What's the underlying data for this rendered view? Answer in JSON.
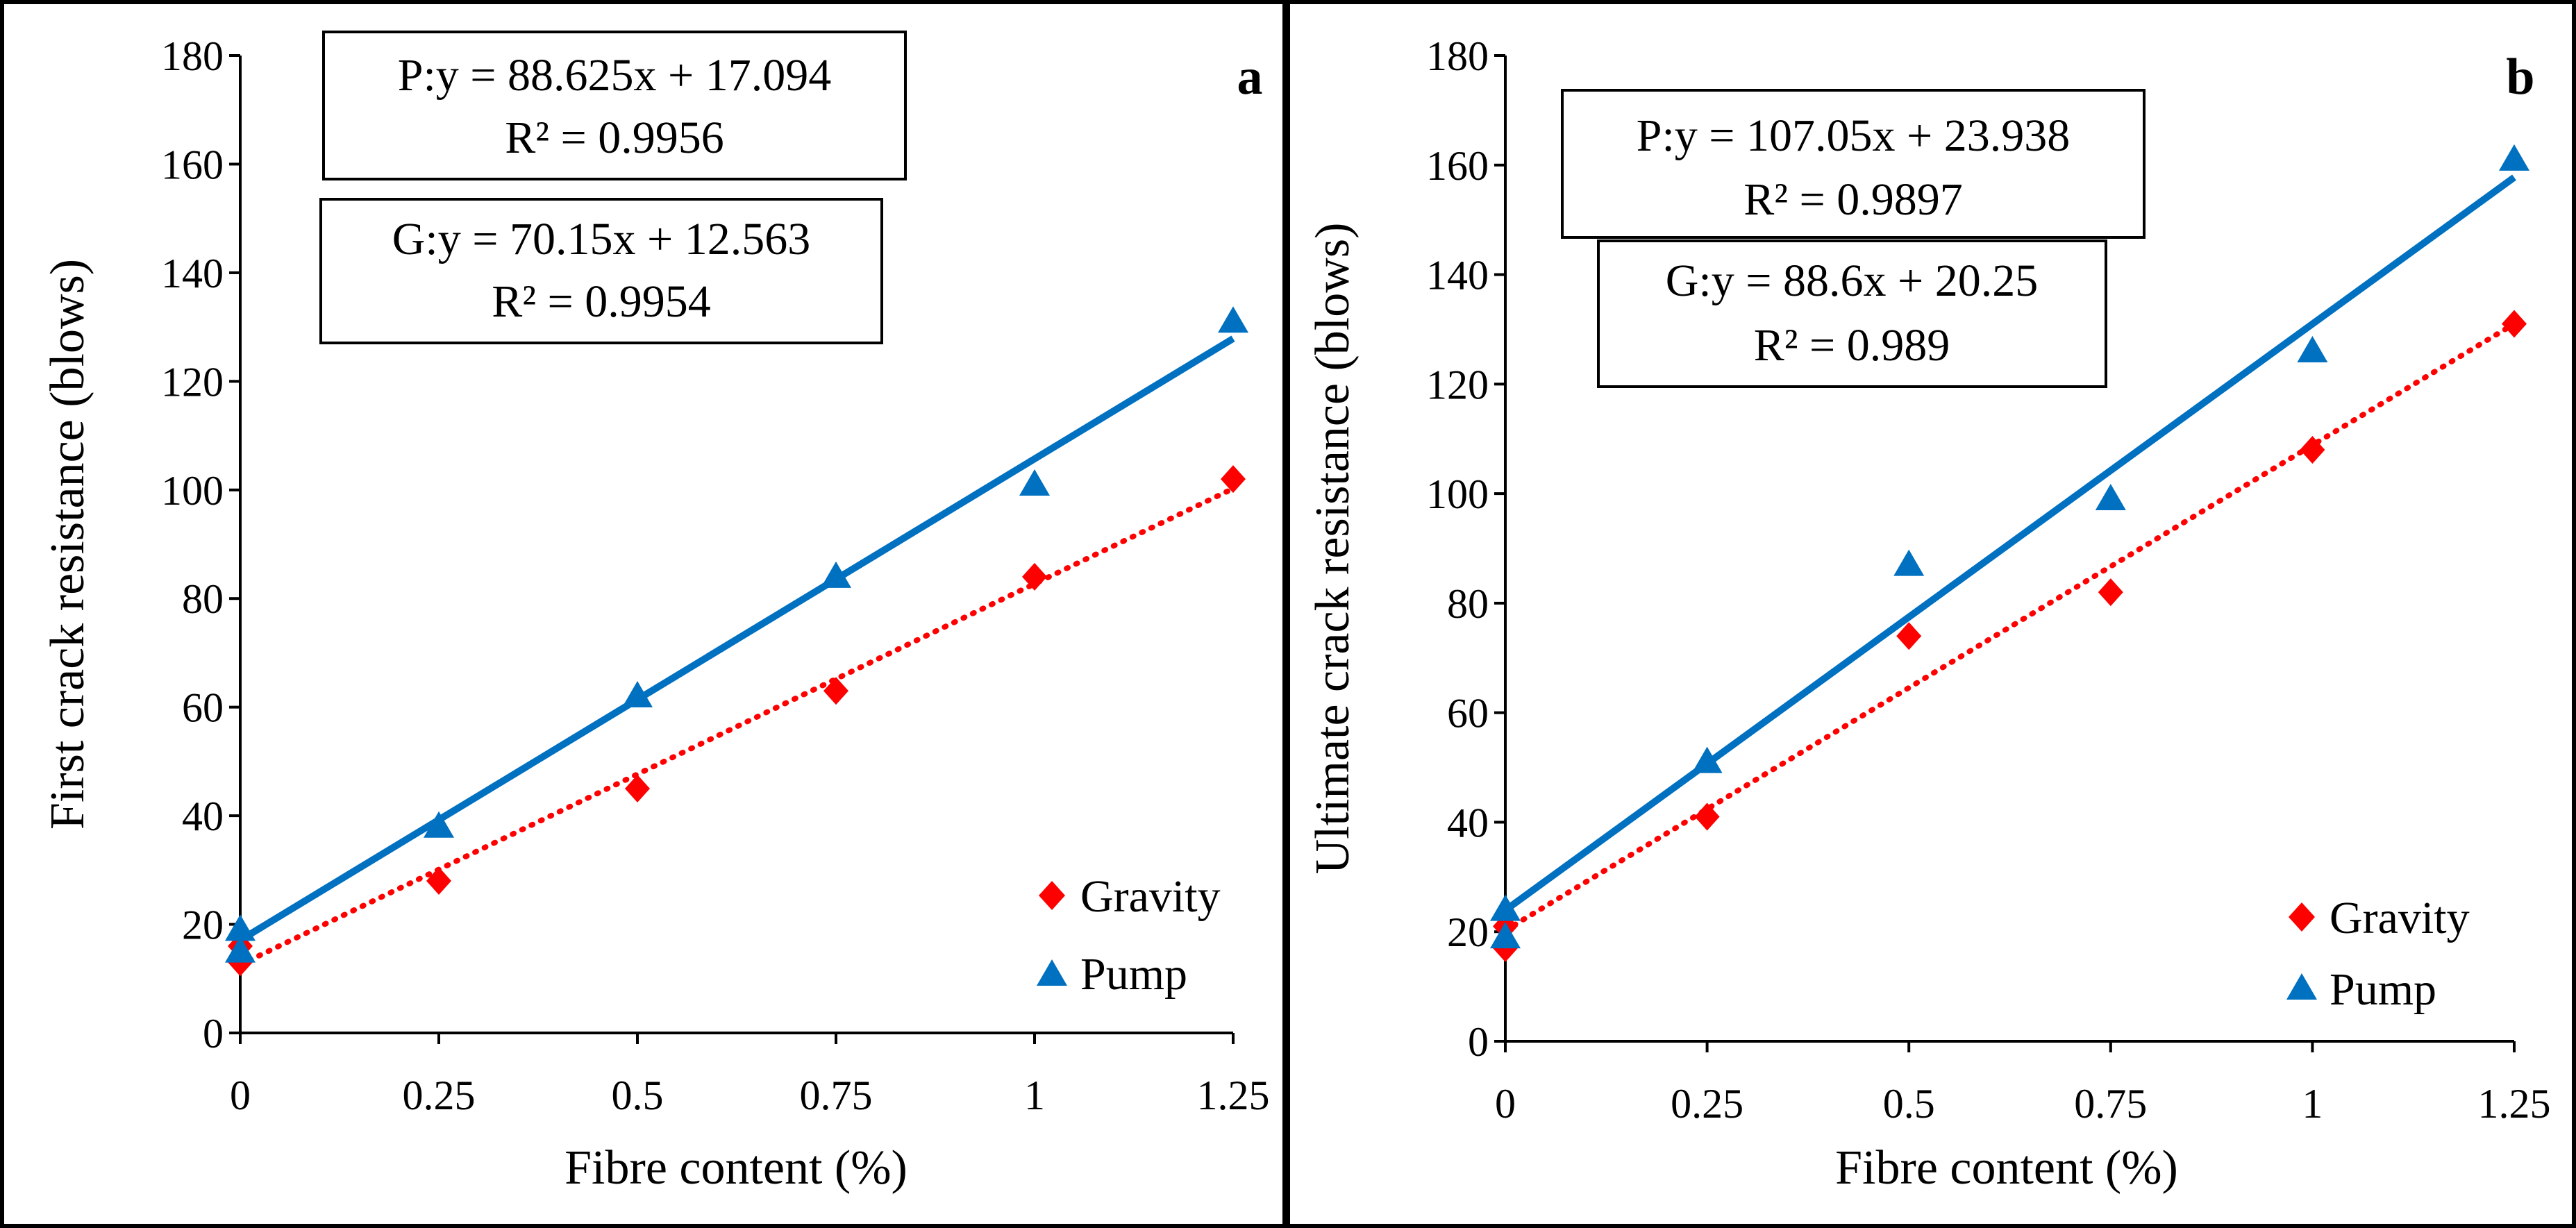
{
  "chart_data": [
    {
      "type": "scatter",
      "panel_label": "a",
      "xlabel": "Fibre content (%)",
      "ylabel": "First crack resistance (blows)",
      "x_ticks": [
        "0",
        "0.25",
        "0.5",
        "0.75",
        "1",
        "1.25"
      ],
      "y_ticks": [
        "0",
        "20",
        "40",
        "60",
        "80",
        "100",
        "120",
        "140",
        "160",
        "180"
      ],
      "xlim": [
        0,
        1.25
      ],
      "ylim": [
        0,
        180
      ],
      "series": [
        {
          "name": "Gravity",
          "marker": "diamond",
          "color": "#ff0000",
          "trend_style": "dotted",
          "points": [
            [
              0,
              13
            ],
            [
              0,
              16
            ],
            [
              0.25,
              28
            ],
            [
              0.5,
              45
            ],
            [
              0.75,
              63
            ],
            [
              1,
              84
            ],
            [
              1.25,
              102
            ]
          ],
          "fit": {
            "slope": 70.15,
            "intercept": 12.563
          },
          "equation": "G:y = 70.15x + 12.563",
          "r2": "R² = 0.9954"
        },
        {
          "name": "Pump",
          "marker": "triangle",
          "color": "#0070c0",
          "trend_style": "solid",
          "points": [
            [
              0,
              15
            ],
            [
              0,
              19
            ],
            [
              0.25,
              38
            ],
            [
              0.5,
              62
            ],
            [
              0.75,
              84
            ],
            [
              1,
              101
            ],
            [
              1.25,
              131
            ]
          ],
          "fit": {
            "slope": 88.625,
            "intercept": 17.094
          },
          "equation": "P:y = 88.625x + 17.094",
          "r2": "R² = 0.9956"
        }
      ]
    },
    {
      "type": "scatter",
      "panel_label": "b",
      "xlabel": "Fibre content (%)",
      "ylabel": "Ultimate crack resistance (blows)",
      "x_ticks": [
        "0",
        "0.25",
        "0.5",
        "0.75",
        "1",
        "1.25"
      ],
      "y_ticks": [
        "0",
        "20",
        "40",
        "60",
        "80",
        "100",
        "120",
        "140",
        "160",
        "180"
      ],
      "xlim": [
        0,
        1.25
      ],
      "ylim": [
        0,
        180
      ],
      "series": [
        {
          "name": "Gravity",
          "marker": "diamond",
          "color": "#ff0000",
          "trend_style": "dotted",
          "points": [
            [
              0,
              17
            ],
            [
              0,
              21
            ],
            [
              0.25,
              41
            ],
            [
              0.5,
              74
            ],
            [
              0.75,
              82
            ],
            [
              1,
              108
            ],
            [
              1.25,
              131
            ]
          ],
          "fit": {
            "slope": 88.6,
            "intercept": 20.25
          },
          "equation": "G:y = 88.6x + 20.25",
          "r2": "R² = 0.989"
        },
        {
          "name": "Pump",
          "marker": "triangle",
          "color": "#0070c0",
          "trend_style": "solid",
          "points": [
            [
              0,
              19
            ],
            [
              0,
              24
            ],
            [
              0.25,
              51
            ],
            [
              0.5,
              87
            ],
            [
              0.75,
              99
            ],
            [
              1,
              126
            ],
            [
              1.25,
              161
            ]
          ],
          "fit": {
            "slope": 107.05,
            "intercept": 23.938
          },
          "equation": "P:y = 107.05x + 23.938",
          "r2": "R² = 0.9897"
        }
      ]
    }
  ]
}
